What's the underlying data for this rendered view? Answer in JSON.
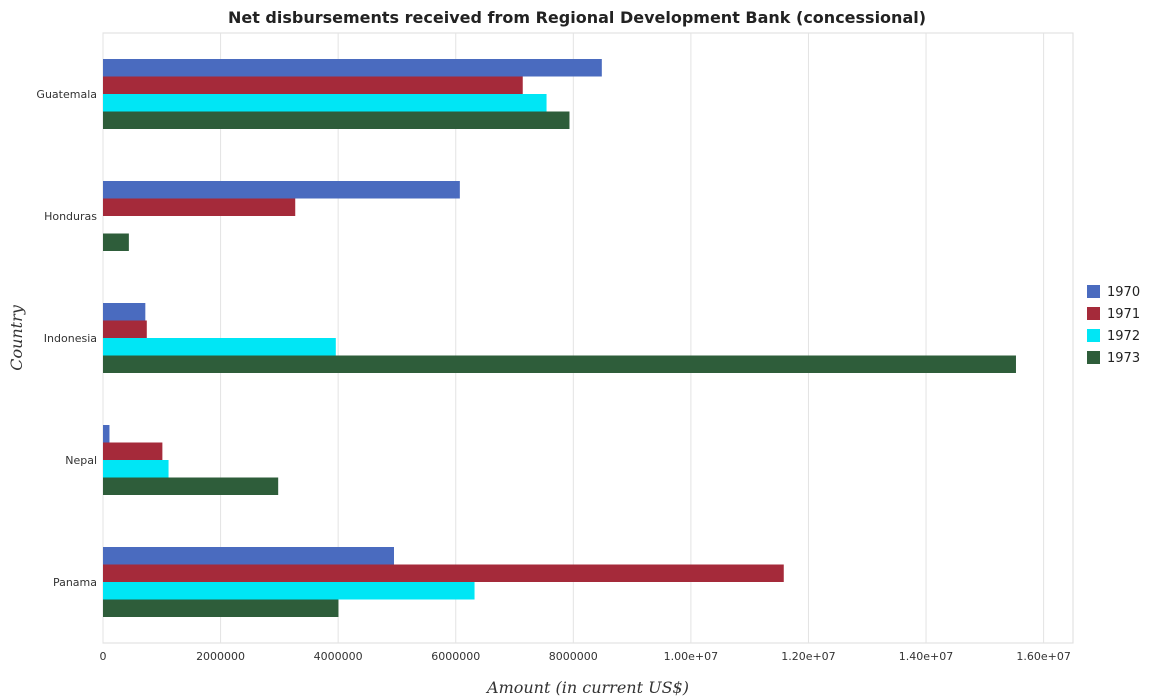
{
  "chart_data": {
    "type": "bar",
    "orientation": "horizontal",
    "title": "Net disbursements received from Regional Development Bank (concessional)",
    "xlabel": "Amount (in current US$)",
    "ylabel": "Country",
    "categories": [
      "Guatemala",
      "Honduras",
      "Indonesia",
      "Nepal",
      "Panama"
    ],
    "series": [
      {
        "name": "1970",
        "color": "#4a6bbf",
        "values": [
          8485000,
          6070000,
          720000,
          110000,
          4950000
        ]
      },
      {
        "name": "1971",
        "color": "#a52a3a",
        "values": [
          7140000,
          3270000,
          745000,
          1010000,
          11580000
        ]
      },
      {
        "name": "1972",
        "color": "#00e6f5",
        "values": [
          7545000,
          0,
          3960000,
          1115000,
          6320000
        ]
      },
      {
        "name": "1973",
        "color": "#2e5d3a",
        "values": [
          7935000,
          440000,
          15530000,
          2980000,
          4005000
        ]
      }
    ],
    "xlim": [
      0,
      16500000
    ],
    "xticks": [
      0,
      2000000,
      4000000,
      6000000,
      8000000,
      10000000,
      12000000,
      14000000,
      16000000
    ],
    "xtick_labels": [
      "0",
      "2000000",
      "4000000",
      "6000000",
      "8000000",
      "1.00e+07",
      "1.20e+07",
      "1.40e+07",
      "1.60e+07"
    ],
    "grid": true,
    "legend_position": "right"
  }
}
